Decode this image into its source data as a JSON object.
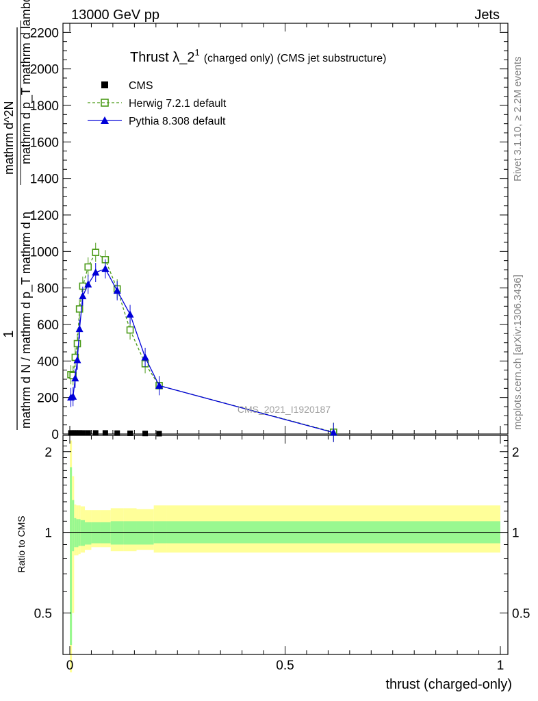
{
  "header": {
    "left": "13000 GeV pp",
    "right": "Jets"
  },
  "side_labels": {
    "rivet": "Rivet 3.1.10, ≥ 2.2M events",
    "mcplots": "mcplots.cern.ch [arXiv:1306.3436]"
  },
  "chart_data": [
    {
      "type": "line",
      "title": "Thrust λ_2",
      "title_sup": "1",
      "title_note": "(charged only) (CMS jet substructure)",
      "ylabel_numerator": "1",
      "ylabel_denominator": "mathrm d N / mathrm d p_T mathrm d η",
      "ylabel_fraction_num": "mathrm d^2N",
      "ylabel_fraction_den": "mathrm d p_T mathrm d lambda",
      "xlabel": "thrust (charged-only)",
      "watermark": "CMS_2021_I1920187",
      "xlim": [
        0,
        1
      ],
      "ylim": [
        0,
        2250
      ],
      "y_ticks": [
        0,
        200,
        400,
        600,
        800,
        1000,
        1200,
        1400,
        1600,
        1800,
        2000,
        2200
      ],
      "legend_position": "top-left",
      "series": [
        {
          "name": "CMS",
          "color": "#000000",
          "marker": "square-filled",
          "x": [
            0.0025,
            0.0075,
            0.0125,
            0.0175,
            0.0225,
            0.03,
            0.0425,
            0.06,
            0.0825,
            0.11,
            0.14,
            0.175,
            0.2075
          ],
          "y": [
            6,
            6,
            6,
            6,
            6,
            6,
            6,
            6,
            6,
            5,
            4,
            3,
            2
          ]
        },
        {
          "name": "Herwig 7.2.1 default",
          "color": "#4a9a17",
          "marker": "square-open",
          "line": "dashed",
          "x": [
            0.0025,
            0.0075,
            0.0125,
            0.0175,
            0.0225,
            0.03,
            0.0425,
            0.06,
            0.0825,
            0.11,
            0.14,
            0.175,
            0.2075,
            0.6125
          ],
          "y": [
            325,
            320,
            420,
            495,
            685,
            810,
            915,
            995,
            955,
            795,
            570,
            385,
            265,
            10
          ]
        },
        {
          "name": "Pythia 8.308 default",
          "color": "#0000d8",
          "marker": "triangle-filled",
          "line": "solid",
          "x": [
            0.0025,
            0.0075,
            0.0125,
            0.0175,
            0.0225,
            0.03,
            0.0425,
            0.06,
            0.0825,
            0.11,
            0.14,
            0.175,
            0.2075,
            0.6125
          ],
          "y": [
            200,
            205,
            305,
            405,
            575,
            755,
            820,
            885,
            905,
            785,
            655,
            420,
            265,
            8
          ]
        }
      ]
    },
    {
      "type": "area",
      "ylabel": "Ratio to CMS",
      "xlabel": "thrust (charged-only)",
      "xlim": [
        0,
        1
      ],
      "ylim": [
        0.35,
        2.3
      ],
      "y_ticks": [
        0.5,
        1,
        2
      ],
      "x_ticks": [
        0,
        0.5,
        1
      ],
      "bin_edges": [
        0,
        0.005,
        0.01,
        0.015,
        0.02,
        0.025,
        0.035,
        0.05,
        0.07,
        0.095,
        0.125,
        0.155,
        0.195,
        0.225,
        1.0
      ],
      "inner_band": {
        "color": "#99f890",
        "low": [
          0.38,
          0.85,
          0.88,
          0.88,
          0.89,
          0.89,
          0.9,
          0.91,
          0.91,
          0.9,
          0.9,
          0.9,
          0.91,
          0.91
        ],
        "high": [
          1.75,
          1.32,
          1.13,
          1.12,
          1.12,
          1.11,
          1.09,
          1.09,
          1.09,
          1.1,
          1.1,
          1.1,
          1.1,
          1.1
        ]
      },
      "outer_band": {
        "color": "#ffff99",
        "low": [
          0.3,
          0.5,
          0.82,
          0.82,
          0.83,
          0.84,
          0.86,
          0.88,
          0.88,
          0.85,
          0.85,
          0.86,
          0.84,
          0.84
        ],
        "high": [
          2.2,
          1.62,
          1.27,
          1.26,
          1.26,
          1.25,
          1.21,
          1.21,
          1.21,
          1.23,
          1.23,
          1.22,
          1.26,
          1.26
        ]
      }
    }
  ]
}
